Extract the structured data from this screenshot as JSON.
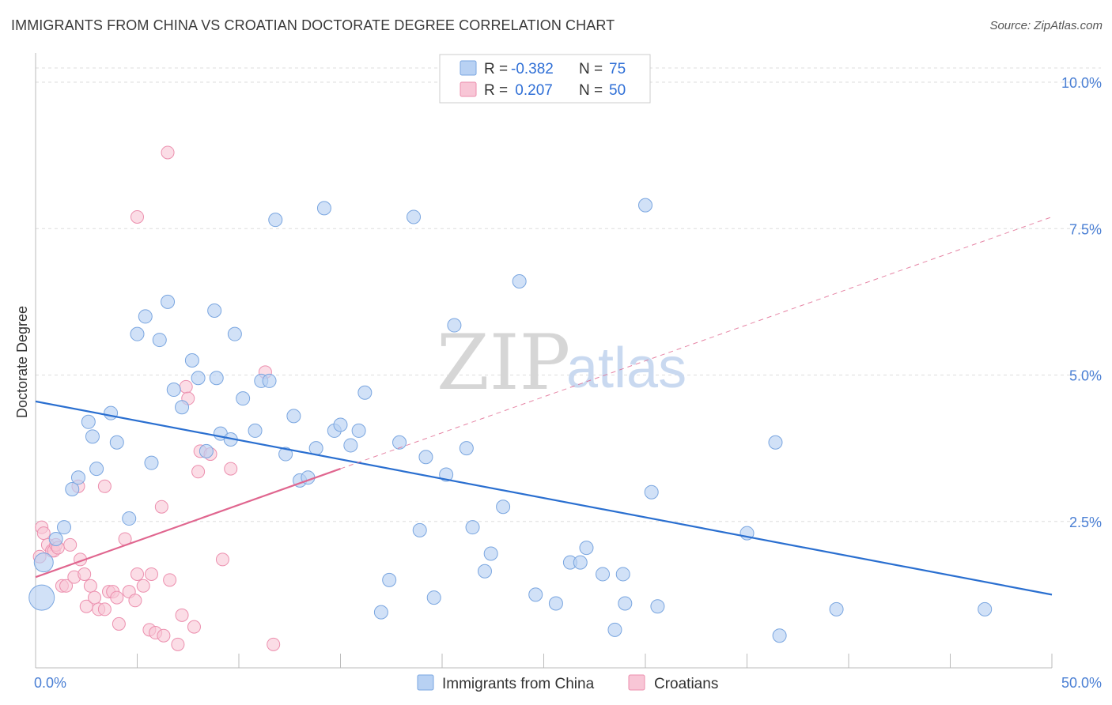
{
  "title": "IMMIGRANTS FROM CHINA VS CROATIAN DOCTORATE DEGREE CORRELATION CHART",
  "source": "Source: ZipAtlas.com",
  "watermark": {
    "zip": "ZIP",
    "atlas": "atlas"
  },
  "colors": {
    "blue_fill": "#b8d1f3",
    "blue_stroke": "#7aa6e0",
    "blue_line": "#2a6fd0",
    "pink_fill": "#f8c6d6",
    "pink_stroke": "#ec8fae",
    "pink_line": "#e0668f",
    "tick_text": "#4a7fd4",
    "grid": "#dddddd"
  },
  "legend": {
    "rows": [
      {
        "r_label": "R =",
        "r_value": "-0.382",
        "n_label": "N =",
        "n_value": "75"
      },
      {
        "r_label": "R =",
        "r_value": " 0.207",
        "n_label": "N =",
        "n_value": "50"
      }
    ]
  },
  "bottom_legend": [
    "Immigrants from China",
    "Croatians"
  ],
  "chart_data": {
    "type": "scatter",
    "title": "IMMIGRANTS FROM CHINA VS CROATIAN DOCTORATE DEGREE CORRELATION CHART",
    "xlabel": "",
    "ylabel": "Doctorate Degree",
    "xlim": [
      0,
      50
    ],
    "ylim": [
      0,
      10.5
    ],
    "x_tick_labels": [
      "0.0%",
      "50.0%"
    ],
    "y_ticks": [
      2.5,
      5.0,
      7.5,
      10.0
    ],
    "y_tick_labels": [
      "2.5%",
      "5.0%",
      "7.5%",
      "10.0%"
    ],
    "grid": "horizontal dashed",
    "legend_placement": "top-center",
    "series": [
      {
        "name": "Immigrants from China",
        "r": -0.382,
        "n": 75,
        "trend": {
          "x": [
            0,
            50
          ],
          "y": [
            4.55,
            1.25
          ],
          "style": "solid"
        },
        "points": [
          [
            0.3,
            1.2
          ],
          [
            0.4,
            1.8
          ],
          [
            1.0,
            2.2
          ],
          [
            1.4,
            2.4
          ],
          [
            1.8,
            3.05
          ],
          [
            2.1,
            3.25
          ],
          [
            2.6,
            4.2
          ],
          [
            2.8,
            3.95
          ],
          [
            3.0,
            3.4
          ],
          [
            3.7,
            4.35
          ],
          [
            4.0,
            3.85
          ],
          [
            4.6,
            2.55
          ],
          [
            5.0,
            5.7
          ],
          [
            5.4,
            6.0
          ],
          [
            5.7,
            3.5
          ],
          [
            6.1,
            5.6
          ],
          [
            6.5,
            6.25
          ],
          [
            6.8,
            4.75
          ],
          [
            7.2,
            4.45
          ],
          [
            7.7,
            5.25
          ],
          [
            8.0,
            4.95
          ],
          [
            8.4,
            3.7
          ],
          [
            8.8,
            6.1
          ],
          [
            9.1,
            4.0
          ],
          [
            9.6,
            3.9
          ],
          [
            9.8,
            5.7
          ],
          [
            10.2,
            4.6
          ],
          [
            10.8,
            4.05
          ],
          [
            11.1,
            4.9
          ],
          [
            11.5,
            4.9
          ],
          [
            11.8,
            7.65
          ],
          [
            12.3,
            3.65
          ],
          [
            12.7,
            4.3
          ],
          [
            13.0,
            3.2
          ],
          [
            13.4,
            3.25
          ],
          [
            13.8,
            3.75
          ],
          [
            14.2,
            7.85
          ],
          [
            14.7,
            4.05
          ],
          [
            15.0,
            4.15
          ],
          [
            15.5,
            3.8
          ],
          [
            15.9,
            4.05
          ],
          [
            16.2,
            4.7
          ],
          [
            17.0,
            0.95
          ],
          [
            17.4,
            1.5
          ],
          [
            17.9,
            3.85
          ],
          [
            18.6,
            7.7
          ],
          [
            18.9,
            2.35
          ],
          [
            19.2,
            3.6
          ],
          [
            19.6,
            1.2
          ],
          [
            20.2,
            3.3
          ],
          [
            20.6,
            5.85
          ],
          [
            21.2,
            3.75
          ],
          [
            21.5,
            2.4
          ],
          [
            22.1,
            1.65
          ],
          [
            22.4,
            1.95
          ],
          [
            23.0,
            2.75
          ],
          [
            23.8,
            6.6
          ],
          [
            24.6,
            1.25
          ],
          [
            25.6,
            1.1
          ],
          [
            26.3,
            1.8
          ],
          [
            26.8,
            1.8
          ],
          [
            27.1,
            2.05
          ],
          [
            27.9,
            1.6
          ],
          [
            28.5,
            0.65
          ],
          [
            28.9,
            1.6
          ],
          [
            29.0,
            1.1
          ],
          [
            30.0,
            7.9
          ],
          [
            30.3,
            3.0
          ],
          [
            30.6,
            1.05
          ],
          [
            35.0,
            2.3
          ],
          [
            36.4,
            3.85
          ],
          [
            36.6,
            0.55
          ],
          [
            39.4,
            1.0
          ],
          [
            46.7,
            1.0
          ],
          [
            8.9,
            4.95
          ]
        ]
      },
      {
        "name": "Croatians",
        "r": 0.207,
        "n": 50,
        "trend": {
          "x": [
            0,
            15
          ],
          "y": [
            1.55,
            3.4
          ],
          "style": "solid",
          "extended": {
            "x": [
              15,
              50
            ],
            "y": [
              3.4,
              7.7
            ],
            "style": "dashed"
          }
        },
        "points": [
          [
            0.2,
            1.9
          ],
          [
            0.3,
            2.4
          ],
          [
            0.4,
            2.3
          ],
          [
            0.6,
            2.1
          ],
          [
            0.8,
            2.0
          ],
          [
            0.9,
            2.0
          ],
          [
            1.0,
            2.1
          ],
          [
            1.3,
            1.4
          ],
          [
            1.5,
            1.4
          ],
          [
            1.7,
            2.1
          ],
          [
            1.9,
            1.55
          ],
          [
            2.1,
            3.1
          ],
          [
            2.2,
            1.85
          ],
          [
            2.4,
            1.6
          ],
          [
            2.5,
            1.05
          ],
          [
            2.7,
            1.4
          ],
          [
            2.9,
            1.2
          ],
          [
            3.1,
            1.0
          ],
          [
            3.4,
            1.0
          ],
          [
            3.6,
            1.3
          ],
          [
            3.8,
            1.3
          ],
          [
            4.0,
            1.2
          ],
          [
            4.1,
            0.75
          ],
          [
            4.4,
            2.2
          ],
          [
            4.6,
            1.3
          ],
          [
            4.9,
            1.15
          ],
          [
            5.0,
            1.6
          ],
          [
            5.3,
            1.4
          ],
          [
            5.6,
            0.65
          ],
          [
            5.7,
            1.6
          ],
          [
            5.9,
            0.6
          ],
          [
            6.2,
            2.75
          ],
          [
            6.3,
            0.55
          ],
          [
            6.5,
            8.8
          ],
          [
            6.6,
            1.5
          ],
          [
            7.0,
            0.4
          ],
          [
            7.2,
            0.9
          ],
          [
            7.4,
            4.8
          ],
          [
            7.5,
            4.6
          ],
          [
            7.8,
            0.7
          ],
          [
            8.0,
            3.35
          ],
          [
            8.1,
            3.7
          ],
          [
            8.6,
            3.65
          ],
          [
            9.2,
            1.85
          ],
          [
            9.6,
            3.4
          ],
          [
            11.3,
            5.05
          ],
          [
            11.7,
            0.4
          ],
          [
            5.0,
            7.7
          ],
          [
            3.4,
            3.1
          ],
          [
            1.1,
            2.05
          ]
        ]
      }
    ]
  }
}
